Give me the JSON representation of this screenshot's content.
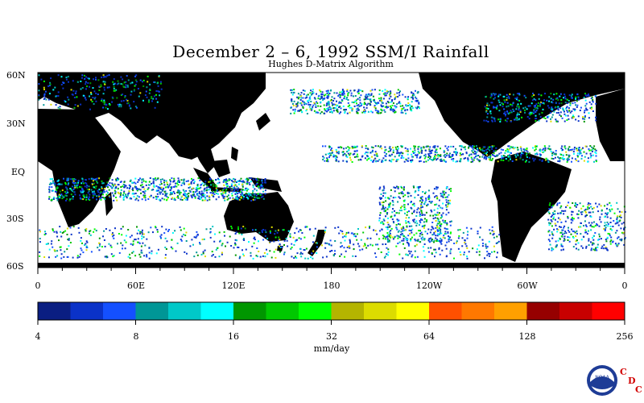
{
  "title": "December 2 – 6, 1992 SSM/I Rainfall",
  "subtitle": "Hughes D-Matrix Algorithm",
  "lat_labels": [
    "60N",
    "30N",
    "EQ",
    "30S",
    "60S"
  ],
  "lon_labels": [
    "0",
    "60E",
    "120E",
    "180",
    "120W",
    "60W",
    "0"
  ],
  "colorbar": {
    "colors": [
      "#0a1e82",
      "#0a32c8",
      "#1450ff",
      "#009696",
      "#00c8c8",
      "#00ffff",
      "#009600",
      "#00c800",
      "#00ff00",
      "#b4b400",
      "#dcdc00",
      "#ffff00",
      "#ff5000",
      "#ff7800",
      "#ffa000",
      "#960000",
      "#c80000",
      "#ff0000"
    ],
    "tick_labels": [
      "4",
      "8",
      "16",
      "32",
      "64",
      "128",
      "256"
    ],
    "unit": "mm/day"
  },
  "logo": {
    "name": "NOAA",
    "org": [
      "C",
      "D",
      "C"
    ]
  }
}
